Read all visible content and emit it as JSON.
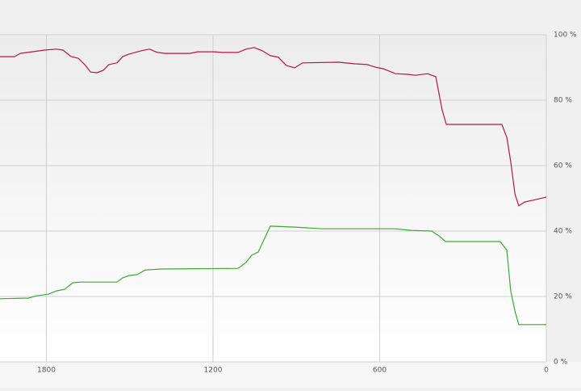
{
  "chart_data": {
    "type": "line",
    "xlim": [
      1967,
      0
    ],
    "xticks": [
      1800,
      1200,
      600,
      0
    ],
    "ylim": [
      0,
      100
    ],
    "yticks": [
      {
        "value": 100,
        "label": "100 %"
      },
      {
        "value": 80,
        "label": "80 %"
      },
      {
        "value": 60,
        "label": "60 %"
      },
      {
        "value": 40,
        "label": "40 %"
      },
      {
        "value": 20,
        "label": "20 %"
      },
      {
        "value": 0,
        "label": "0 %"
      }
    ],
    "grid": true,
    "series": [
      {
        "color": "#b3164a",
        "x": [
          1967,
          1915,
          1894,
          1851,
          1807,
          1764,
          1740,
          1711,
          1685,
          1662,
          1641,
          1618,
          1595,
          1575,
          1546,
          1525,
          1502,
          1458,
          1429,
          1400,
          1371,
          1284,
          1255,
          1197,
          1168,
          1110,
          1081,
          1052,
          1023,
          994,
          965,
          936,
          906,
          877,
          747,
          689,
          645,
          616,
          587,
          543,
          500,
          471,
          427,
          413,
          398,
          375,
          360,
          224,
          160,
          142,
          128,
          113,
          99,
          78,
          49,
          0
        ],
        "values": [
          93.3,
          93.3,
          94.3,
          94.8,
          95.3,
          95.6,
          95.3,
          93.3,
          92.8,
          90.9,
          88.6,
          88.4,
          89.1,
          90.9,
          91.4,
          93.3,
          94.1,
          95.1,
          95.6,
          94.6,
          94.3,
          94.3,
          94.8,
          94.8,
          94.6,
          94.6,
          95.6,
          96.1,
          95.1,
          93.6,
          93.1,
          90.6,
          89.9,
          91.4,
          91.6,
          91.1,
          90.9,
          90.1,
          89.6,
          88.1,
          87.9,
          87.6,
          88.1,
          87.6,
          87.2,
          77.0,
          72.6,
          72.6,
          72.6,
          68.6,
          61.2,
          51.4,
          47.7,
          48.9,
          49.4,
          50.4
        ]
      },
      {
        "color": "#3da832",
        "x": [
          1967,
          1865,
          1836,
          1793,
          1764,
          1734,
          1705,
          1676,
          1546,
          1525,
          1502,
          1473,
          1444,
          1386,
          1110,
          1081,
          1061,
          1037,
          1014,
          994,
          906,
          863,
          805,
          543,
          485,
          413,
          383,
          363,
          166,
          142,
          128,
          113,
          99,
          0
        ],
        "values": [
          19.3,
          19.5,
          20.2,
          20.7,
          21.7,
          22.2,
          24.2,
          24.4,
          24.4,
          25.7,
          26.4,
          26.7,
          28.1,
          28.4,
          28.6,
          30.4,
          32.6,
          33.6,
          37.8,
          41.5,
          41.2,
          41.0,
          40.7,
          40.7,
          40.2,
          40.0,
          38.3,
          36.8,
          36.8,
          34.1,
          21.7,
          15.6,
          11.4,
          11.4
        ]
      }
    ]
  }
}
